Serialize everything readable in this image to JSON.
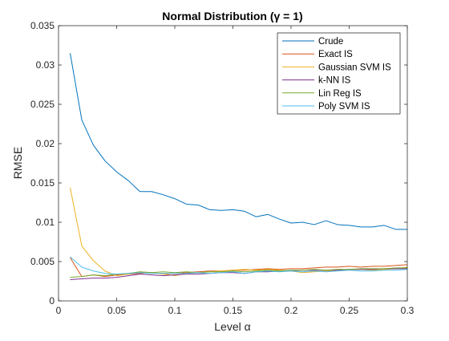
{
  "chart_data": {
    "type": "line",
    "title": "Normal Distribution (γ = 1)",
    "xlabel": "Level α",
    "ylabel": "RMSE",
    "xlim": [
      0,
      0.3
    ],
    "ylim": [
      0,
      0.035
    ],
    "xticks": [
      0,
      0.05,
      0.1,
      0.15,
      0.2,
      0.25,
      0.3
    ],
    "xtick_labels": [
      "0",
      "0.05",
      "0.1",
      "0.15",
      "0.2",
      "0.25",
      "0.3"
    ],
    "yticks": [
      0,
      0.005,
      0.01,
      0.015,
      0.02,
      0.025,
      0.03,
      0.035
    ],
    "ytick_labels": [
      "0",
      "0.005",
      "0.01",
      "0.015",
      "0.02",
      "0.025",
      "0.03",
      "0.035"
    ],
    "grid": false,
    "legend_position": "top-right",
    "x": [
      0.01,
      0.02,
      0.03,
      0.04,
      0.05,
      0.06,
      0.07,
      0.08,
      0.09,
      0.1,
      0.11,
      0.12,
      0.13,
      0.14,
      0.15,
      0.16,
      0.17,
      0.18,
      0.19,
      0.2,
      0.21,
      0.22,
      0.23,
      0.24,
      0.25,
      0.26,
      0.27,
      0.28,
      0.29,
      0.3
    ],
    "series": [
      {
        "name": "Crude",
        "color": "#0072BD",
        "values": [
          0.0315,
          0.023,
          0.0198,
          0.0178,
          0.0164,
          0.0153,
          0.0139,
          0.0139,
          0.0135,
          0.013,
          0.0123,
          0.0122,
          0.0116,
          0.0115,
          0.0116,
          0.0114,
          0.0107,
          0.011,
          0.0104,
          0.0099,
          0.01,
          0.0097,
          0.0102,
          0.0097,
          0.0096,
          0.0094,
          0.0094,
          0.0096,
          0.0091,
          0.0091
        ]
      },
      {
        "name": "Exact IS",
        "color": "#D95319",
        "values": [
          0.0055,
          0.0031,
          0.0033,
          0.0031,
          0.0033,
          0.0034,
          0.0035,
          0.0036,
          0.0034,
          0.0035,
          0.0036,
          0.0037,
          0.0038,
          0.0038,
          0.0039,
          0.0039,
          0.004,
          0.0041,
          0.004,
          0.0041,
          0.0041,
          0.0042,
          0.0043,
          0.0043,
          0.0044,
          0.0043,
          0.0044,
          0.0044,
          0.0045,
          0.0046
        ]
      },
      {
        "name": "Gaussian SVM IS",
        "color": "#EDB120",
        "values": [
          0.0144,
          0.007,
          0.0051,
          0.0038,
          0.0032,
          0.0034,
          0.0037,
          0.0036,
          0.0034,
          0.0032,
          0.0035,
          0.0036,
          0.0037,
          0.0038,
          0.0039,
          0.004,
          0.0039,
          0.004,
          0.0039,
          0.0038,
          0.0036,
          0.0037,
          0.0038,
          0.0039,
          0.004,
          0.004,
          0.0039,
          0.004,
          0.0041,
          0.0043
        ]
      },
      {
        "name": "k-NN IS",
        "color": "#7E2F8E",
        "values": [
          0.0027,
          0.0028,
          0.0029,
          0.0029,
          0.003,
          0.0032,
          0.0034,
          0.0033,
          0.0032,
          0.0033,
          0.0034,
          0.0034,
          0.0035,
          0.0036,
          0.0036,
          0.0035,
          0.0037,
          0.0037,
          0.0038,
          0.0038,
          0.0039,
          0.0039,
          0.0039,
          0.0039,
          0.004,
          0.004,
          0.004,
          0.0041,
          0.0041,
          0.0041
        ]
      },
      {
        "name": "Lin Reg IS",
        "color": "#77AC30",
        "values": [
          0.003,
          0.0031,
          0.0033,
          0.0032,
          0.0034,
          0.0035,
          0.0037,
          0.0036,
          0.0037,
          0.0036,
          0.0037,
          0.0036,
          0.0037,
          0.0037,
          0.0038,
          0.0037,
          0.0038,
          0.0039,
          0.0038,
          0.0039,
          0.0039,
          0.004,
          0.0039,
          0.004,
          0.004,
          0.0041,
          0.0041,
          0.0041,
          0.0042,
          0.0042
        ]
      },
      {
        "name": "Poly SVM IS",
        "color": "#4DBEEE",
        "values": [
          0.0056,
          0.0043,
          0.0038,
          0.0035,
          0.0034,
          0.0035,
          0.0036,
          0.0035,
          0.0035,
          0.0035,
          0.0035,
          0.0036,
          0.0035,
          0.0036,
          0.0037,
          0.0035,
          0.0037,
          0.0038,
          0.0037,
          0.0038,
          0.0037,
          0.0038,
          0.0037,
          0.0038,
          0.0039,
          0.0038,
          0.0038,
          0.0039,
          0.0039,
          0.004
        ]
      }
    ]
  }
}
